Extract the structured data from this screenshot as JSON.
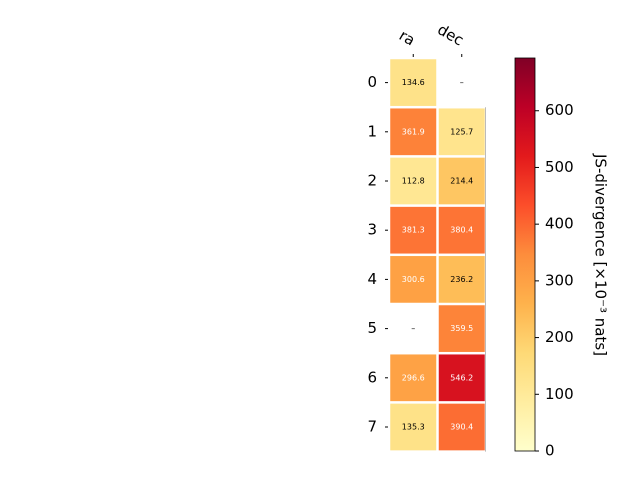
{
  "chart_data": {
    "type": "heatmap",
    "columns": [
      "ra",
      "dec"
    ],
    "rows": [
      "0",
      "1",
      "2",
      "3",
      "4",
      "5",
      "6",
      "7"
    ],
    "values": [
      [
        134.6,
        null
      ],
      [
        361.9,
        125.7
      ],
      [
        112.8,
        214.4
      ],
      [
        381.3,
        380.4
      ],
      [
        300.6,
        236.2
      ],
      [
        null,
        359.5
      ],
      [
        296.6,
        546.2
      ],
      [
        135.3,
        390.4
      ]
    ],
    "cell_labels": [
      [
        "134.6",
        "–"
      ],
      [
        "361.9",
        "125.7"
      ],
      [
        "112.8",
        "214.4"
      ],
      [
        "381.3",
        "380.4"
      ],
      [
        "300.6",
        "236.2"
      ],
      [
        "–",
        "359.5"
      ],
      [
        "296.6",
        "546.2"
      ],
      [
        "135.3",
        "390.4"
      ]
    ],
    "missing_label": "–",
    "colorbar": {
      "label": "JS-divergence [×10⁻³ nats]",
      "colormap": "YlOrRd",
      "vmin": 0,
      "vmax": 693,
      "ticks": [
        0,
        100,
        200,
        300,
        400,
        500,
        600
      ],
      "tick_labels": [
        "0",
        "100",
        "200",
        "300",
        "400",
        "500",
        "600"
      ]
    }
  }
}
